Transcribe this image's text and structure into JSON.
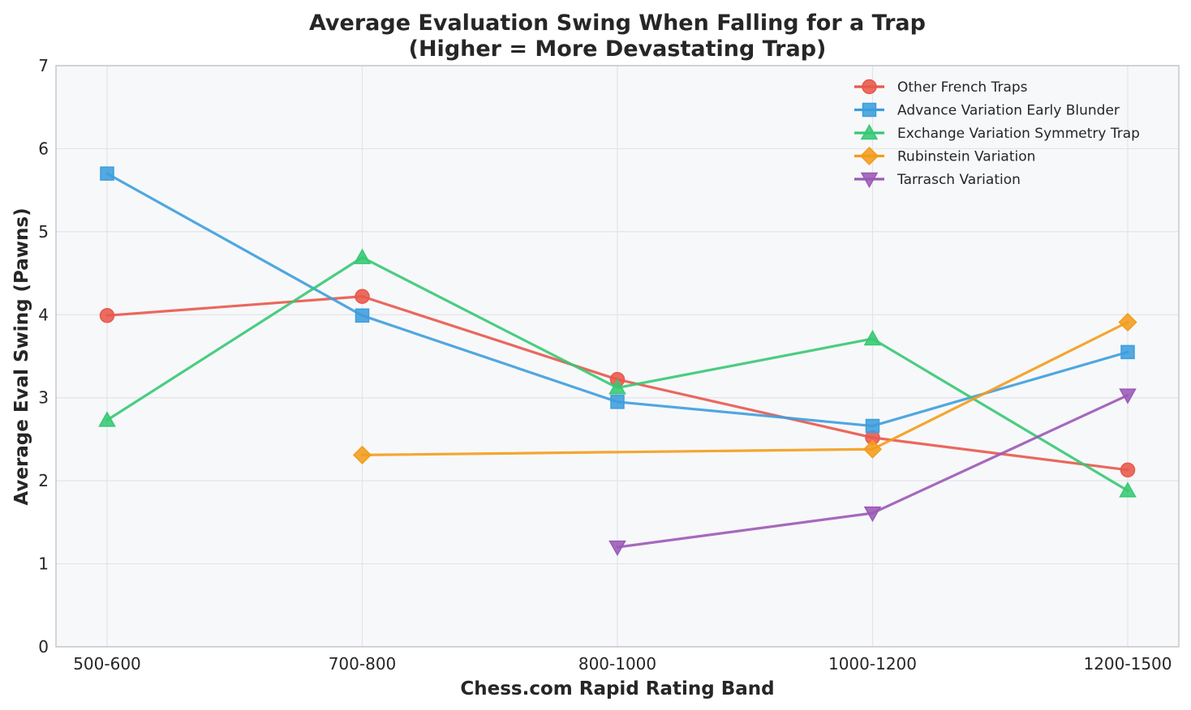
{
  "chart_data": {
    "type": "line",
    "title": "Average Evaluation Swing When Falling for a Trap",
    "subtitle": "(Higher = More Devastating Trap)",
    "xlabel": "Chess.com Rapid Rating Band",
    "ylabel": "Average Eval Swing (Pawns)",
    "categories": [
      "500-600",
      "700-800",
      "800-1000",
      "1000-1200",
      "1200-1500"
    ],
    "ylim": [
      0,
      7
    ],
    "yticks": [
      0,
      1,
      2,
      3,
      4,
      5,
      6,
      7
    ],
    "grid": true,
    "legend_position": "top-right",
    "series": [
      {
        "name": "Other French Traps",
        "color": "#e8584b",
        "marker": "circle",
        "values": [
          3.99,
          4.22,
          3.22,
          2.52,
          2.13
        ]
      },
      {
        "name": "Advance Variation Early Blunder",
        "color": "#3d9ddd",
        "marker": "square",
        "values": [
          5.7,
          3.99,
          2.95,
          2.66,
          3.55
        ]
      },
      {
        "name": "Exchange Variation Symmetry Trap",
        "color": "#36c873",
        "marker": "triangle-up",
        "values": [
          2.73,
          4.69,
          3.12,
          3.71,
          1.88
        ]
      },
      {
        "name": "Rubinstein Variation",
        "color": "#f39c1b",
        "marker": "diamond",
        "values": [
          null,
          2.31,
          null,
          2.38,
          3.91
        ]
      },
      {
        "name": "Tarrasch Variation",
        "color": "#9b59b6",
        "marker": "triangle-down",
        "values": [
          null,
          null,
          1.2,
          1.61,
          3.03
        ]
      }
    ]
  }
}
